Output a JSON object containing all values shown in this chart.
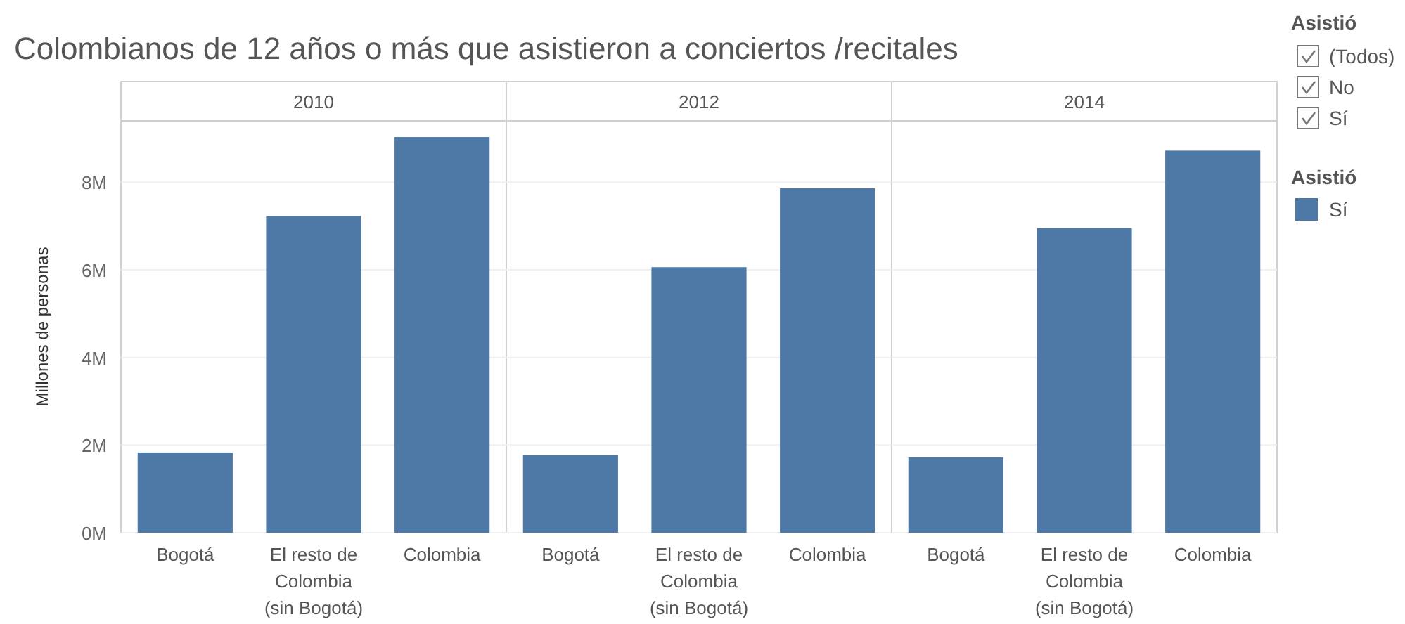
{
  "chart_data": [
    {
      "type": "bar",
      "title": "Colombianos de 12 años o más que asistieron a conciertos /recitales",
      "subtitle": "2010",
      "ylabel": "Millones de personas",
      "categories": [
        "Bogotá",
        "El resto de Colombia (sin Bogotá)",
        "Colombia"
      ],
      "series": [
        {
          "color": "#4e79a7",
          "values": [
            1.83,
            7.23,
            9.03
          ]
        }
      ],
      "ylim": [
        0,
        9.4
      ],
      "yticks": [
        {
          "value": 0,
          "label": "0M"
        },
        {
          "value": 2,
          "label": "2M"
        },
        {
          "value": 4,
          "label": "4M"
        },
        {
          "value": 6,
          "label": "6M"
        },
        {
          "value": 8,
          "label": "8M"
        }
      ],
      "grid": "y"
    },
    {
      "type": "bar",
      "subtitle": "2012",
      "categories": [
        "Bogotá",
        "El resto de Colombia (sin Bogotá)",
        "Colombia"
      ],
      "series": [
        {
          "color": "#4e79a7",
          "values": [
            1.77,
            6.06,
            7.86
          ]
        }
      ],
      "ylim": [
        0,
        9.4
      ],
      "yticks": [
        {
          "value": 0,
          "label": null
        },
        {
          "value": 2,
          "label": null
        },
        {
          "value": 4,
          "label": null
        },
        {
          "value": 6,
          "label": null
        },
        {
          "value": 8,
          "label": null
        }
      ],
      "grid": "y",
      "tick_labels": "x"
    },
    {
      "type": "bar",
      "subtitle": "2014",
      "categories": [
        "Bogotá",
        "El resto de Colombia (sin Bogotá)",
        "Colombia"
      ],
      "series": [
        {
          "name": "Sí",
          "color": "#4e79a7",
          "values": [
            1.72,
            6.95,
            8.72
          ]
        }
      ],
      "ylim": [
        0,
        9.4
      ],
      "yticks": [
        {
          "value": 0,
          "label": null
        },
        {
          "value": 2,
          "label": null
        },
        {
          "value": 4,
          "label": null
        },
        {
          "value": 6,
          "label": null
        },
        {
          "value": 8,
          "label": null
        }
      ],
      "grid": "y",
      "tick_labels": "x",
      "legend": "right",
      "legend_title": "Asistió"
    },
    {
      "type": "other",
      "title": "Asistió",
      "annotations": [
        "(Todos)",
        "No",
        "Sí"
      ]
    }
  ]
}
